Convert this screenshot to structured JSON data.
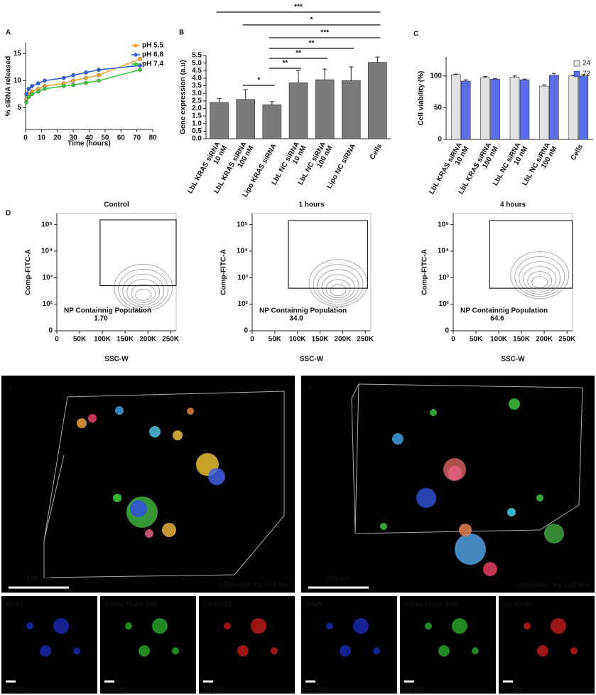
{
  "panel_labels": [
    "A",
    "B",
    "C",
    "D",
    "E",
    "F"
  ],
  "chart_data": [
    {
      "type": "line",
      "ylabel": "% siRNA released",
      "xlabel": "Time (hours)",
      "x": [
        0.5,
        2,
        4,
        8,
        12,
        24,
        30,
        38,
        46,
        72
      ],
      "xlim": [
        0,
        80
      ],
      "xticks": [
        0,
        10,
        20,
        30,
        40,
        50,
        60,
        70,
        80
      ],
      "ylim": [
        1,
        17
      ],
      "yticks": [
        5,
        10,
        15
      ],
      "legend": "upper right",
      "series": [
        {
          "name": "pH 5.5",
          "color": "#f0a830",
          "values": [
            6.5,
            7.5,
            8,
            8.5,
            9,
            9.5,
            10,
            10.5,
            11,
            14
          ]
        },
        {
          "name": "pH 6.8",
          "color": "#2f5fe0",
          "values": [
            7.5,
            8.5,
            9,
            9.5,
            10,
            10.5,
            11,
            11.5,
            12,
            12.8
          ]
        },
        {
          "name": "pH 7.4",
          "color": "#3cc83c",
          "values": [
            6,
            7,
            7.5,
            8,
            8.5,
            9,
            9.2,
            9.6,
            10,
            12
          ]
        }
      ]
    },
    {
      "type": "bar",
      "ylabel": "Gene expression (a.u)",
      "categories": [
        [
          "LbL KRAS siRNA",
          "10 nM"
        ],
        [
          "LbL KRAS siRNA",
          "100 nM"
        ],
        [
          "Lipo KRAS siRNA"
        ],
        [
          "LbL NC siRNA",
          "10 nM"
        ],
        [
          "LbL NC siRNA",
          "100 nM"
        ],
        [
          "Lipo NC siRNA"
        ],
        [
          "Cells"
        ]
      ],
      "values": [
        2.4,
        2.6,
        2.25,
        3.7,
        3.9,
        3.85,
        5.05
      ],
      "errors": [
        0.25,
        0.65,
        0.2,
        0.8,
        0.7,
        0.9,
        0.35
      ],
      "color": "#7a7a7a",
      "ylim": [
        0,
        5.5
      ],
      "yticks": [
        {
          "value": 0,
          "label": "0.0"
        },
        0.5,
        {
          "value": 1,
          "label": "1.0"
        },
        1.5,
        {
          "value": 2,
          "label": "2.0"
        },
        2.5,
        {
          "value": 3,
          "label": "3.0"
        },
        3.5,
        {
          "value": 4,
          "label": "4.0"
        },
        4.5,
        {
          "value": 5,
          "label": "5.0"
        },
        5.5
      ],
      "significance": [
        "***",
        "*",
        "***",
        "**",
        "**",
        "**",
        "*"
      ]
    },
    {
      "type": "grouped_bar",
      "ylabel": "Cell viability (%)",
      "categories": [
        [
          "LbL KRAS siRNA",
          "10 nM"
        ],
        [
          "LbL KRAS siRNA",
          "100 nM"
        ],
        [
          "LbL NC siRNA",
          "10 nM"
        ],
        [
          "LbL NC siRNA",
          "100 nM"
        ],
        [
          "Cells"
        ]
      ],
      "series": [
        {
          "name": "24",
          "color": "#e2e2e2",
          "values": [
            102,
            97,
            98,
            84,
            100
          ],
          "errors": [
            1,
            2,
            2,
            2,
            1
          ]
        },
        {
          "name": "72",
          "color": "#5b6ee8",
          "values": [
            92,
            95,
            94,
            101,
            100
          ],
          "errors": [
            2,
            1,
            1,
            3,
            2
          ]
        }
      ],
      "ylim": [
        0,
        130
      ],
      "yticks": [
        0,
        50,
        100
      ],
      "legend": "upper right"
    },
    {
      "type": "contour",
      "title": "Control",
      "xlabel": "SSC-W",
      "ylabel": "Comp-FITC-A",
      "xlim": [
        0,
        262144
      ],
      "xticks": [
        0,
        {
          "value": 50000,
          "label": "50K"
        },
        {
          "value": 100000,
          "label": "100K"
        },
        {
          "value": 150000,
          "label": "150K"
        },
        {
          "value": 200000,
          "label": "200K"
        },
        {
          "value": 250000,
          "label": "250K"
        }
      ],
      "ylim": [
        0,
        262144
      ],
      "yscale": "biexponential",
      "yticks": [
        0,
        {
          "value": 100,
          "label": "10²"
        },
        {
          "value": 1000,
          "label": "10³"
        },
        {
          "value": 10000,
          "label": "10⁴"
        },
        {
          "value": 100000,
          "label": "10⁵"
        }
      ],
      "population": {
        "x": 190000,
        "y": 200
      },
      "gate": {
        "x": [
          95000,
          262144
        ],
        "y": [
          500,
          150000
        ],
        "label": "NP Containnig Population",
        "value": 1.7,
        "value_label": "1.70"
      }
    },
    {
      "type": "contour",
      "title": "1 hours",
      "xlabel": "SSC-W",
      "ylabel": "Comp-FITC-A",
      "xlim": [
        0,
        262144
      ],
      "xticks": [
        0,
        {
          "value": 50000,
          "label": "50K"
        },
        {
          "value": 100000,
          "label": "100K"
        },
        {
          "value": 150000,
          "label": "150K"
        },
        {
          "value": 200000,
          "label": "200K"
        },
        {
          "value": 250000,
          "label": "250K"
        }
      ],
      "ylim": [
        0,
        262144
      ],
      "yscale": "biexponential",
      "yticks": [
        0,
        {
          "value": 100,
          "label": "10²"
        },
        {
          "value": 1000,
          "label": "10³"
        },
        {
          "value": 10000,
          "label": "10⁴"
        },
        {
          "value": 100000,
          "label": "10⁵"
        }
      ],
      "population": {
        "x": 190000,
        "y": 300
      },
      "gate": {
        "x": [
          80000,
          255000
        ],
        "y": [
          400,
          140000
        ],
        "label": "NP Containnig Population",
        "value": 34,
        "value_label": "34.0"
      }
    },
    {
      "type": "contour",
      "title": "4 hours",
      "xlabel": "SSC-W",
      "ylabel": "Comp-FITC-A",
      "xlim": [
        0,
        262144
      ],
      "xticks": [
        0,
        {
          "value": 50000,
          "label": "50K"
        },
        {
          "value": 100000,
          "label": "100K"
        },
        {
          "value": 150000,
          "label": "150K"
        },
        {
          "value": 200000,
          "label": "200K"
        },
        {
          "value": 250000,
          "label": "250K"
        }
      ],
      "ylim": [
        0,
        262144
      ],
      "yscale": "biexponential",
      "yticks": [
        0,
        {
          "value": 100,
          "label": "10²"
        },
        {
          "value": 1000,
          "label": "10³"
        },
        {
          "value": 10000,
          "label": "10⁴"
        },
        {
          "value": 100000,
          "label": "10⁵"
        }
      ],
      "population": {
        "x": 190000,
        "y": 600
      },
      "gate": {
        "x": [
          80000,
          262144
        ],
        "y": [
          400,
          140000
        ],
        "label": "NP Containnig Population",
        "value": 64.6
      }
    }
  ],
  "micrographs": [
    {
      "scale_bar": "100 µm",
      "caption": "tdTomato Kp cell line",
      "channels": [
        {
          "name": "DAPI",
          "scale_bar": "50 µm"
        },
        {
          "name": "Alexa Fluor 488",
          "scale_bar": "50 µm"
        },
        {
          "name": "Ds-Red2",
          "scale_bar": "50 µm"
        }
      ]
    },
    {
      "scale_bar": "100 µm",
      "caption": "tdTomato Kp cell line",
      "channels": [
        {
          "name": "DAPI",
          "scale_bar": "50 µm"
        },
        {
          "name": "Alexa Fluor 488",
          "scale_bar": "50 µm"
        },
        {
          "name": "Ds-Red2",
          "scale_bar": "50 µm"
        }
      ]
    }
  ]
}
